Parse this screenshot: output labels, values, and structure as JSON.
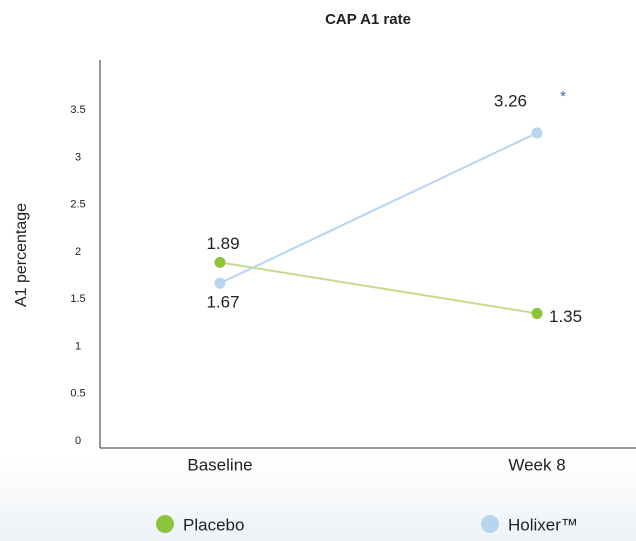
{
  "chart_data": {
    "type": "line",
    "title": "CAP A1 rate",
    "y_label": "A1  percentage",
    "categories": [
      "Baseline",
      "Week 8"
    ],
    "series": [
      {
        "name": "Placebo",
        "color": "#8cc43c",
        "line_color": "#c6dc8c",
        "values": [
          1.89,
          1.35
        ]
      },
      {
        "name": "Holixer™",
        "color": "#b8d4ee",
        "line_color": "#b8d4ee",
        "values": [
          1.67,
          3.26
        ]
      }
    ],
    "annotation": "*",
    "ylim": [
      0,
      4
    ],
    "yticks": [
      0,
      0.5,
      1,
      1.5,
      2,
      2.5,
      3,
      3.5
    ],
    "grid": false
  }
}
